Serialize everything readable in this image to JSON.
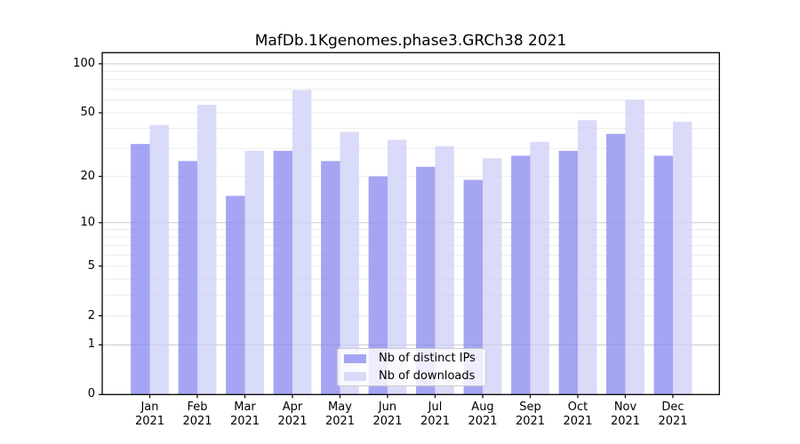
{
  "chart_data": {
    "type": "bar",
    "title": "MafDb.1Kgenomes.phase3.GRCh38 2021",
    "categories": [
      "Jan",
      "Feb",
      "Mar",
      "Apr",
      "May",
      "Jun",
      "Jul",
      "Aug",
      "Sep",
      "Oct",
      "Nov",
      "Dec"
    ],
    "year_label": "2021",
    "series": [
      {
        "name": "Nb of distinct IPs",
        "color": "#8c8cf0",
        "values": [
          32,
          25,
          15,
          29,
          25,
          20,
          23,
          19,
          27,
          29,
          37,
          27
        ]
      },
      {
        "name": "Nb of downloads",
        "color": "#d0d0f7",
        "values": [
          42,
          56,
          29,
          69,
          38,
          34,
          31,
          26,
          33,
          45,
          60,
          44
        ]
      }
    ],
    "yscale": "log1p",
    "ylim": [
      0,
      117
    ],
    "yticks": [
      0,
      1,
      2,
      5,
      10,
      20,
      50,
      100
    ],
    "grid": {
      "major": [
        1,
        10,
        100
      ],
      "minor": [
        2,
        3,
        4,
        5,
        6,
        7,
        8,
        9,
        20,
        30,
        40,
        50,
        60,
        70,
        80,
        90
      ],
      "major_color": "#c9c9c9",
      "minor_color": "#ebebeb"
    },
    "legend_position": "lower center",
    "bar_opacity": 0.78
  }
}
